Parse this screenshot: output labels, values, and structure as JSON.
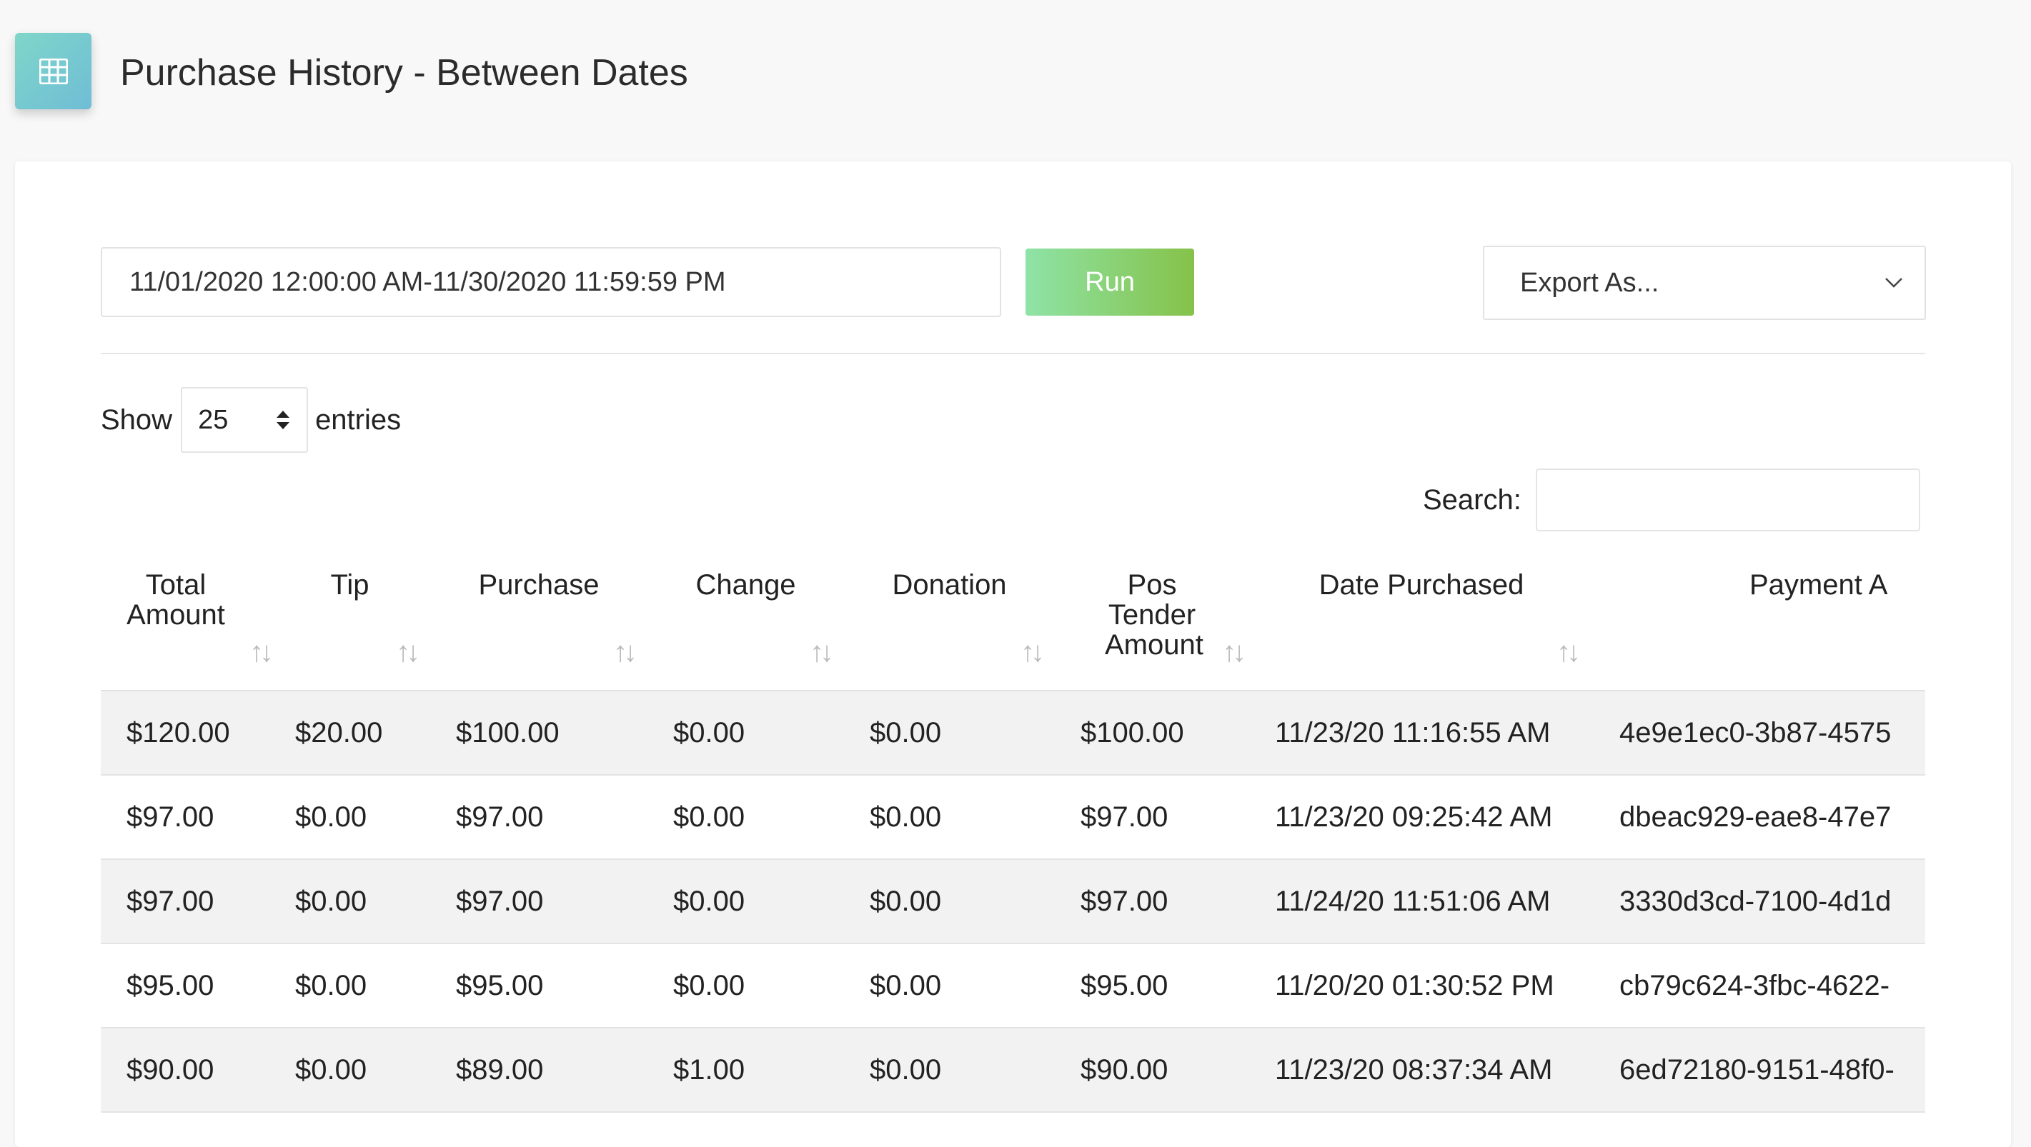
{
  "page": {
    "title": "Purchase History - Between Dates",
    "icon": "table-icon"
  },
  "filters": {
    "date_range": "11/01/2020 12:00:00 AM-11/30/2020 11:59:59 PM",
    "run_label": "Run",
    "export_label": "Export As..."
  },
  "length": {
    "show_label": "Show",
    "value": "25",
    "entries_label": "entries"
  },
  "search": {
    "label": "Search:",
    "value": ""
  },
  "table": {
    "headers": [
      "Total Amount",
      "Tip",
      "Purchase",
      "Change",
      "Donation",
      "Pos Tender Amount",
      "Date Purchased",
      "Payment A"
    ],
    "rows": [
      [
        "$120.00",
        "$20.00",
        "$100.00",
        "$0.00",
        "$0.00",
        "$100.00",
        "11/23/20 11:16:55 AM",
        "4e9e1ec0-3b87-4575"
      ],
      [
        "$97.00",
        "$0.00",
        "$97.00",
        "$0.00",
        "$0.00",
        "$97.00",
        "11/23/20 09:25:42 AM",
        "dbeac929-eae8-47e7"
      ],
      [
        "$97.00",
        "$0.00",
        "$97.00",
        "$0.00",
        "$0.00",
        "$97.00",
        "11/24/20 11:51:06 AM",
        "3330d3cd-7100-4d1d"
      ],
      [
        "$95.00",
        "$0.00",
        "$95.00",
        "$0.00",
        "$0.00",
        "$95.00",
        "11/20/20 01:30:52 PM",
        "cb79c624-3fbc-4622-"
      ],
      [
        "$90.00",
        "$0.00",
        "$89.00",
        "$1.00",
        "$0.00",
        "$90.00",
        "11/23/20 08:37:34 AM",
        "6ed72180-9151-48f0-"
      ]
    ]
  },
  "colors": {
    "accent_icon": "#6fc7d0",
    "run_button": "#86c24a",
    "row_stripe": "#f2f2f2"
  }
}
